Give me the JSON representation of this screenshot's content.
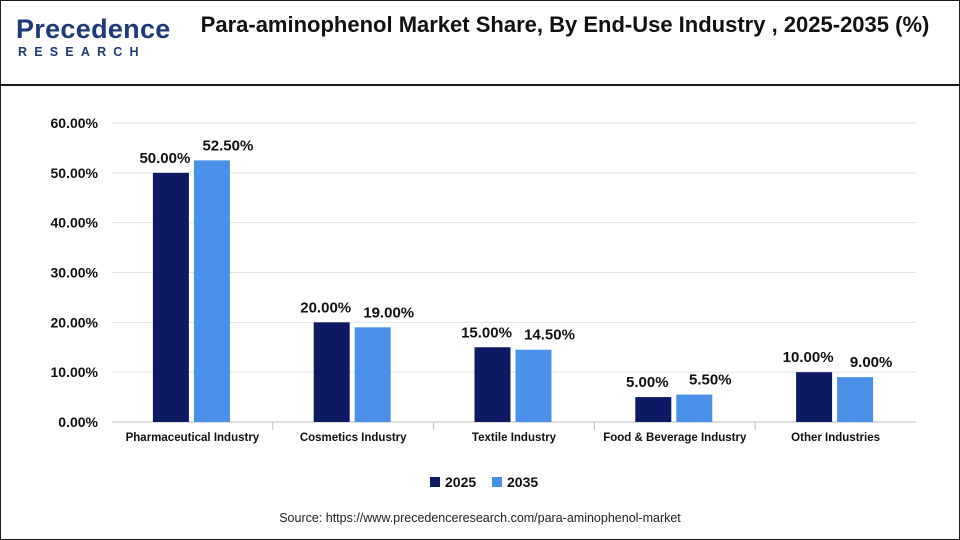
{
  "brand": {
    "logo_main": "Precedence",
    "logo_sub": "RESEARCH",
    "color": "#1f3a7a"
  },
  "title": "Para-aminophenol Market Share, By End-Use Industry , 2025-2035 (%)",
  "source": "Source: https://www.precedenceresearch.com/para-aminophenol-market",
  "chart_data": {
    "type": "bar",
    "title": "Para-aminophenol Market Share, By End-Use Industry , 2025-2035 (%)",
    "categories": [
      "Pharmaceutical Industry",
      "Cosmetics Industry",
      "Textile Industry",
      "Food & Beverage Industry",
      "Other Industries"
    ],
    "series": [
      {
        "name": "2025",
        "color": "#0d1a63",
        "values": [
          50.0,
          20.0,
          15.0,
          5.0,
          10.0
        ],
        "labels": [
          "50.00%",
          "20.00%",
          "15.00%",
          "5.00%",
          "10.00%"
        ]
      },
      {
        "name": "2035",
        "color": "#4a90e8",
        "values": [
          52.5,
          19.0,
          14.5,
          5.5,
          9.0
        ],
        "labels": [
          "52.50%",
          "19.00%",
          "14.50%",
          "5.50%",
          "9.00%"
        ]
      }
    ],
    "ylim": [
      0,
      60
    ],
    "yticks": [
      0,
      10,
      20,
      30,
      40,
      50,
      60
    ],
    "ytick_labels": [
      "0.00%",
      "10.00%",
      "20.00%",
      "30.00%",
      "40.00%",
      "50.00%",
      "60.00%"
    ],
    "grid": true,
    "legend": "bottom-center"
  }
}
